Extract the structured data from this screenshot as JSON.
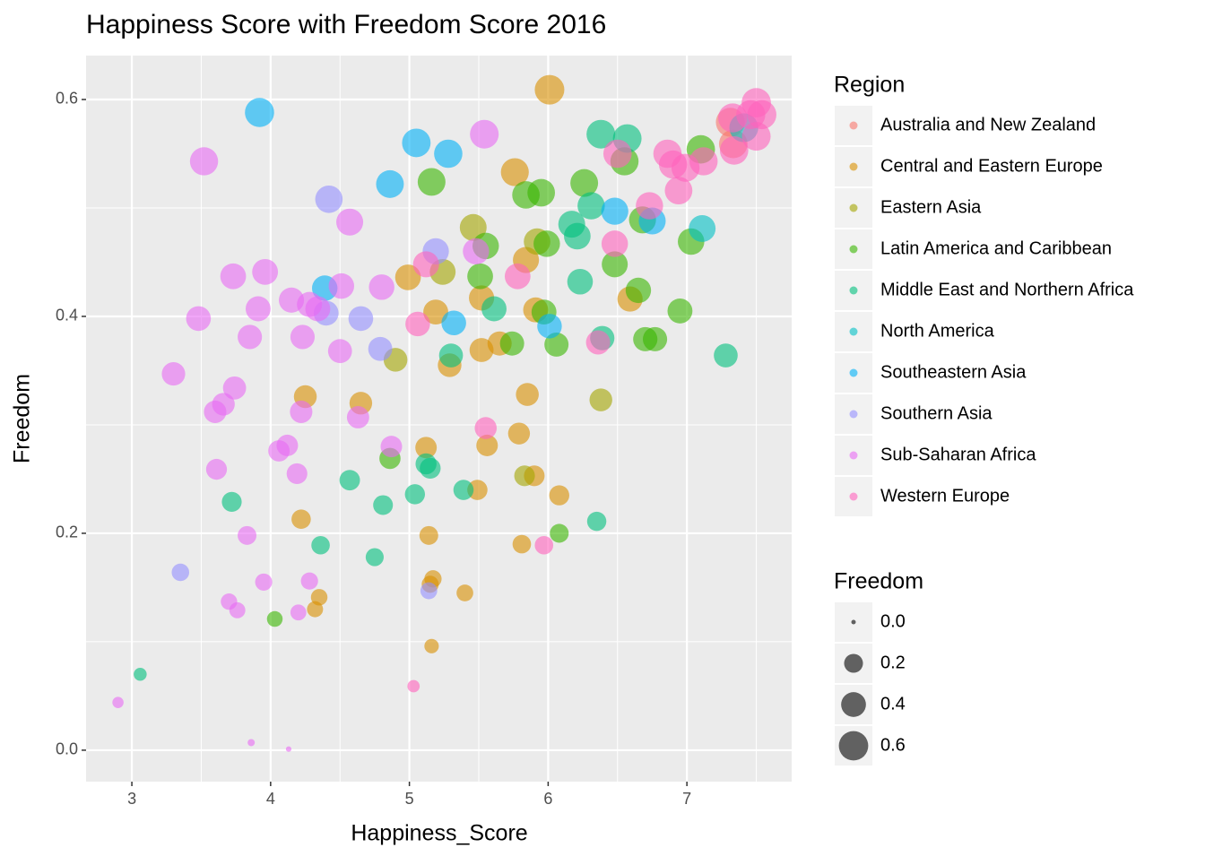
{
  "chart_data": {
    "type": "scatter",
    "title": "Happiness Score with Freedom Score 2016",
    "x_label": "Happiness_Score",
    "y_label": "Freedom",
    "color_legend_title": "Region",
    "size_legend_title": "Freedom",
    "xlim": [
      2.67,
      7.755
    ],
    "ylim": [
      -0.029,
      0.6405
    ],
    "xticks": [
      3,
      4,
      5,
      6,
      7
    ],
    "yticks": [
      {
        "value": 0,
        "label": "0.0"
      },
      0.2,
      0.4,
      0.6
    ],
    "size_breaks": [
      {
        "value": 0,
        "label": "0.0"
      },
      0.2,
      0.4,
      0.6
    ],
    "grid": true,
    "alpha": 0.6,
    "series": [
      {
        "name": "Australia and New Zealand",
        "color": "#F8766D",
        "x": [
          7.313,
          7.334
        ],
        "values": [
          0.579,
          0.559
        ]
      },
      {
        "name": "Central and Eastern Europe",
        "color": "#D89000",
        "x": [
          6.01,
          5.76,
          5.84,
          4.99,
          5.19,
          5.52,
          5.91,
          6.59,
          5.65,
          5.52,
          5.29,
          4.25,
          4.65,
          5.85,
          5.79,
          5.12,
          5.56,
          5.9,
          6.08,
          5.49,
          4.22,
          5.14,
          5.81,
          5.17,
          5.15,
          4.35,
          5.4,
          4.32,
          5.16
        ],
        "values": [
          0.609,
          0.533,
          0.452,
          0.436,
          0.404,
          0.417,
          0.406,
          0.416,
          0.375,
          0.369,
          0.355,
          0.326,
          0.32,
          0.328,
          0.292,
          0.279,
          0.281,
          0.253,
          0.235,
          0.24,
          0.213,
          0.198,
          0.19,
          0.158,
          0.153,
          0.141,
          0.145,
          0.13,
          0.096
        ]
      },
      {
        "name": "Eastern Asia",
        "color": "#A3A500",
        "x": [
          5.46,
          5.92,
          5.24,
          4.9,
          6.38,
          5.83
        ],
        "values": [
          0.482,
          0.469,
          0.441,
          0.36,
          0.323,
          0.253
        ]
      },
      {
        "name": "Latin America and Caribbean",
        "color": "#39B600",
        "x": [
          7.1,
          5.16,
          5.84,
          5.95,
          6.26,
          5.99,
          5.55,
          5.51,
          6.48,
          7.03,
          6.68,
          6.65,
          5.97,
          6.95,
          5.74,
          6.06,
          6.7,
          6.77,
          4.86,
          6.08,
          4.03,
          6.55
        ],
        "values": [
          0.554,
          0.524,
          0.512,
          0.514,
          0.523,
          0.467,
          0.465,
          0.437,
          0.448,
          0.469,
          0.489,
          0.424,
          0.404,
          0.405,
          0.375,
          0.374,
          0.379,
          0.379,
          0.269,
          0.2,
          0.121,
          0.543
        ]
      },
      {
        "name": "Middle East and Northern Africa",
        "color": "#00BF7D",
        "x": [
          6.38,
          6.57,
          6.31,
          6.17,
          6.21,
          6.23,
          5.61,
          5.3,
          6.39,
          7.28,
          3.72,
          4.57,
          4.81,
          5.04,
          5.15,
          5.12,
          5.39,
          4.36,
          4.75,
          6.35,
          3.06
        ],
        "values": [
          0.568,
          0.564,
          0.502,
          0.485,
          0.474,
          0.432,
          0.407,
          0.364,
          0.38,
          0.364,
          0.229,
          0.249,
          0.226,
          0.236,
          0.26,
          0.264,
          0.24,
          0.189,
          0.178,
          0.211,
          0.07
        ]
      },
      {
        "name": "North America",
        "color": "#00BFC4",
        "x": [
          7.11,
          7.41
        ],
        "values": [
          0.481,
          0.574
        ]
      },
      {
        "name": "Southeastern Asia",
        "color": "#00B0F6",
        "x": [
          3.92,
          5.05,
          5.28,
          4.86,
          6.48,
          6.75,
          4.39,
          5.32,
          6.01
        ],
        "values": [
          0.588,
          0.56,
          0.55,
          0.522,
          0.497,
          0.488,
          0.426,
          0.394,
          0.391
        ]
      },
      {
        "name": "Southern Asia",
        "color": "#9590FF",
        "x": [
          4.42,
          5.19,
          4.4,
          4.65,
          4.79,
          5.14,
          3.35
        ],
        "values": [
          0.508,
          0.46,
          0.403,
          0.398,
          0.37,
          0.147,
          0.164
        ]
      },
      {
        "name": "Sub-Saharan Africa",
        "color": "#E76BF3",
        "x": [
          3.52,
          5.54,
          4.57,
          5.48,
          3.73,
          3.96,
          3.48,
          3.91,
          4.15,
          4.28,
          4.34,
          4.51,
          4.8,
          3.85,
          4.23,
          4.5,
          3.3,
          3.74,
          3.66,
          3.6,
          4.22,
          4.63,
          4.12,
          4.06,
          4.19,
          3.61,
          4.87,
          3.83,
          4.28,
          3.95,
          3.7,
          3.76,
          4.2,
          2.9,
          3.86,
          4.13
        ],
        "values": [
          0.543,
          0.568,
          0.487,
          0.46,
          0.437,
          0.441,
          0.398,
          0.407,
          0.415,
          0.411,
          0.407,
          0.428,
          0.427,
          0.381,
          0.381,
          0.368,
          0.347,
          0.334,
          0.319,
          0.312,
          0.312,
          0.307,
          0.281,
          0.276,
          0.255,
          0.259,
          0.28,
          0.198,
          0.156,
          0.155,
          0.137,
          0.129,
          0.127,
          0.044,
          0.007,
          0.001
        ]
      },
      {
        "name": "Western Europe",
        "color": "#FF62BC",
        "x": [
          7.5,
          7.33,
          7.46,
          7.54,
          7.5,
          7.34,
          7.12,
          6.86,
          6.9,
          6.99,
          6.94,
          6.73,
          6.5,
          6.48,
          5.78,
          5.12,
          5.06,
          6.36,
          5.55,
          5.97,
          5.03
        ],
        "values": [
          0.597,
          0.583,
          0.586,
          0.586,
          0.566,
          0.553,
          0.543,
          0.55,
          0.54,
          0.537,
          0.516,
          0.502,
          0.55,
          0.467,
          0.437,
          0.448,
          0.393,
          0.376,
          0.297,
          0.189,
          0.059
        ]
      }
    ]
  }
}
